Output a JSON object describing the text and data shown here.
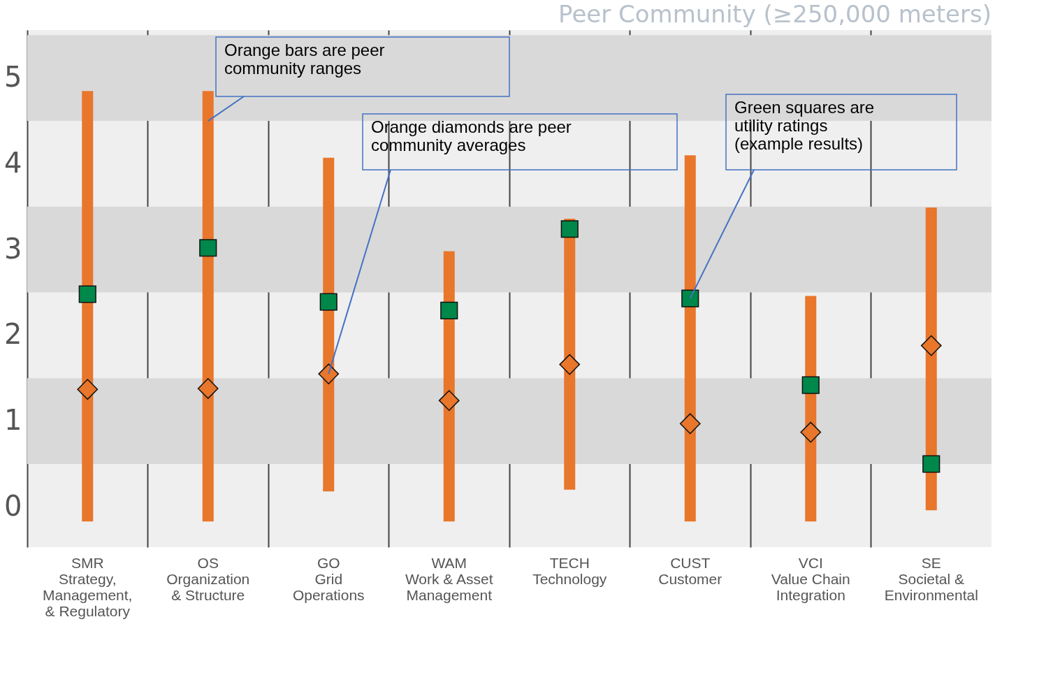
{
  "chart_data": {
    "type": "bar",
    "title": "Peer Community (≥250,000 meters)",
    "categories": [
      "SMR\nStrategy,\nManagement,\n& Regulatory",
      "OS\nOrganization\n& Structure",
      "GO\nGrid\nOperations",
      "WAM\nWork & Asset\nManagement",
      "TECH\nTechnology",
      "CUST\nCustomer",
      "VCI\nValue Chain\nIntegration",
      "SE\nSocietal &\nEnvironmental"
    ],
    "series": [
      {
        "type": "bar",
        "color": "#e8762b",
        "base": [
          -0.17,
          -0.17,
          0.18,
          -0.17,
          0.2,
          -0.17,
          -0.17,
          -0.04
        ],
        "values": [
          5.02,
          5.02,
          3.89,
          3.15,
          3.16,
          4.27,
          2.63,
          3.53
        ]
      },
      {
        "type": "scatter",
        "marker": "diamond",
        "color": "#e8762b",
        "values": [
          1.37,
          1.38,
          1.55,
          1.24,
          1.66,
          0.97,
          0.87,
          1.88
        ]
      },
      {
        "type": "scatter",
        "marker": "square",
        "color": "#00874a",
        "values": [
          2.48,
          3.02,
          2.39,
          2.29,
          3.24,
          2.43,
          1.42,
          0.5
        ]
      }
    ],
    "ylim": [
      -0.47,
      5.56
    ],
    "yticks": [
      0,
      1,
      2,
      3,
      4,
      5
    ],
    "grid": "x",
    "bands": [
      {
        "axis": "y",
        "from": 4.5,
        "to": 5.5,
        "color": "#d9d9d9"
      },
      {
        "axis": "y",
        "from": 2.5,
        "to": 3.5,
        "color": "#d9d9d9"
      },
      {
        "axis": "y",
        "from": 0.5,
        "to": 1.5,
        "color": "#d9d9d9"
      }
    ],
    "annotations": [
      {
        "text": "Orange bars are peer\ncommunity ranges",
        "x": "OS\nOrganization\n& Structure",
        "y": 4.5
      },
      {
        "text": "Orange diamonds are peer\ncommunity averages",
        "x": "GO\nGrid\nOperations",
        "y": 1.55
      },
      {
        "text": "Green squares are\nutility ratings\n(example results)",
        "x": "CUST\nCustomer",
        "y": 2.43
      }
    ]
  }
}
